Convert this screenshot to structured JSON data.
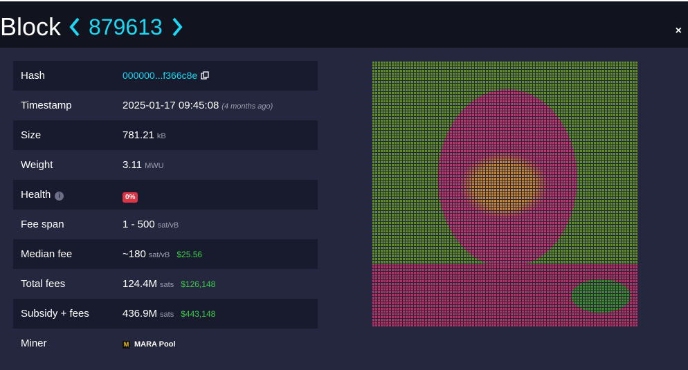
{
  "header": {
    "title": "Block",
    "height": "879613",
    "close": "×"
  },
  "table": {
    "rows": [
      {
        "label": "Hash",
        "value": "000000...f366c8e"
      },
      {
        "label": "Timestamp",
        "value": "2025-01-17 09:45:08",
        "note": "(4 months ago)"
      },
      {
        "label": "Size",
        "value": "781.21",
        "unit": "kB"
      },
      {
        "label": "Weight",
        "value": "3.11",
        "unit": "MWU"
      },
      {
        "label": "Health",
        "badge": "0%"
      },
      {
        "label": "Fee span",
        "value": "1 - 500",
        "unit": "sat/vB"
      },
      {
        "label": "Median fee",
        "value": "~180",
        "unit": "sat/vB",
        "fiat": "$25.56"
      },
      {
        "label": "Total fees",
        "value": "124.4M",
        "unit": "sats",
        "fiat": "$126,148"
      },
      {
        "label": "Subsidy + fees",
        "value": "436.9M",
        "unit": "sats",
        "fiat": "$443,148"
      },
      {
        "label": "Miner",
        "icon": "M",
        "value": "MARA Pool"
      }
    ]
  }
}
